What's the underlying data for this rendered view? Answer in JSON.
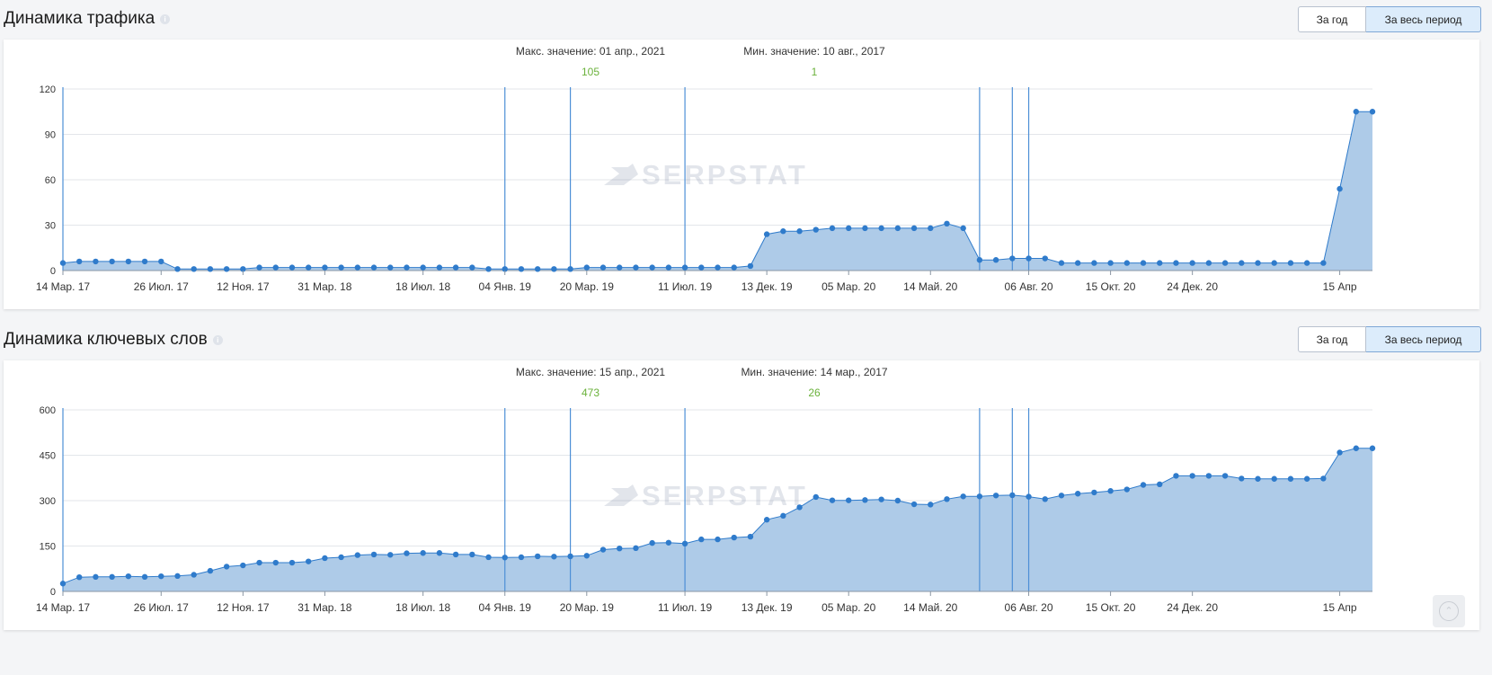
{
  "charts": [
    {
      "title": "Динамика трафика",
      "btn_year": "За год",
      "btn_all": "За весь период",
      "max_label": "Макс. значение: 01 апр., 2021",
      "max_value": "105",
      "min_label": "Мин. значение: 10 авг., 2017",
      "min_value": "1"
    },
    {
      "title": "Динамика ключевых слов",
      "btn_year": "За год",
      "btn_all": "За весь период",
      "max_label": "Макс. значение: 15 апр., 2021",
      "max_value": "473",
      "min_label": "Мин. значение: 14 мар., 2017",
      "min_value": "26"
    }
  ],
  "colors": {
    "line": "#2f7bcb",
    "fill": "#aecbe8",
    "marker_line": "#4d8fd6",
    "accent_green": "#6bb23c",
    "grid": "#e3e6ea"
  },
  "watermark": "SERPSTAT",
  "chart_data": [
    {
      "type": "area",
      "title": "Динамика трафика",
      "ylim": [
        0,
        120
      ],
      "yticks": [
        0,
        30,
        60,
        90,
        120
      ],
      "xlabels": [
        "14 Мар. 17",
        "26 Июл. 17",
        "12 Ноя. 17",
        "31 Мар. 18",
        "18 Июл. 18",
        "04 Янв. 19",
        "20 Мар. 19",
        "11 Июл. 19",
        "13 Дек. 19",
        "05 Мар. 20",
        "14 Май. 20",
        "06 Авг. 20",
        "15 Окт. 20",
        "24 Дек. 20",
        "15 Апр"
      ],
      "values": [
        5,
        6,
        6,
        6,
        6,
        6,
        6,
        1,
        1,
        1,
        1,
        1,
        2,
        2,
        2,
        2,
        2,
        2,
        2,
        2,
        2,
        2,
        2,
        2,
        2,
        2,
        1,
        1,
        1,
        1,
        1,
        1,
        2,
        2,
        2,
        2,
        2,
        2,
        2,
        2,
        2,
        2,
        3,
        24,
        26,
        26,
        27,
        28,
        28,
        28,
        28,
        28,
        28,
        28,
        31,
        28,
        7,
        7,
        8,
        8,
        8,
        5,
        5,
        5,
        5,
        5,
        5,
        5,
        5,
        5,
        5,
        5,
        5,
        5,
        5,
        5,
        5,
        5,
        54,
        105,
        105
      ],
      "event_markers": [
        0,
        27,
        31,
        38,
        56,
        58,
        59
      ]
    },
    {
      "type": "area",
      "title": "Динамика ключевых слов",
      "ylim": [
        0,
        600
      ],
      "yticks": [
        0,
        150,
        300,
        450,
        600
      ],
      "xlabels": [
        "14 Мар. 17",
        "26 Июл. 17",
        "12 Ноя. 17",
        "31 Мар. 18",
        "18 Июл. 18",
        "04 Янв. 19",
        "20 Мар. 19",
        "11 Июл. 19",
        "13 Дек. 19",
        "05 Мар. 20",
        "14 Май. 20",
        "06 Авг. 20",
        "15 Окт. 20",
        "24 Дек. 20",
        "15 Апр"
      ],
      "values": [
        26,
        47,
        48,
        48,
        50,
        48,
        50,
        51,
        55,
        68,
        82,
        86,
        95,
        95,
        95,
        99,
        110,
        113,
        120,
        122,
        121,
        126,
        127,
        127,
        122,
        122,
        113,
        112,
        113,
        116,
        115,
        116,
        118,
        138,
        142,
        143,
        160,
        161,
        158,
        172,
        172,
        178,
        181,
        237,
        250,
        278,
        312,
        301,
        301,
        302,
        304,
        300,
        288,
        287,
        305,
        314,
        314,
        317,
        318,
        313,
        305,
        317,
        323,
        327,
        332,
        337,
        352,
        354,
        382,
        382,
        382,
        382,
        373,
        372,
        372,
        372,
        372,
        373,
        459,
        473,
        473
      ],
      "event_markers": [
        0,
        27,
        31,
        38,
        56,
        58,
        59
      ]
    }
  ]
}
